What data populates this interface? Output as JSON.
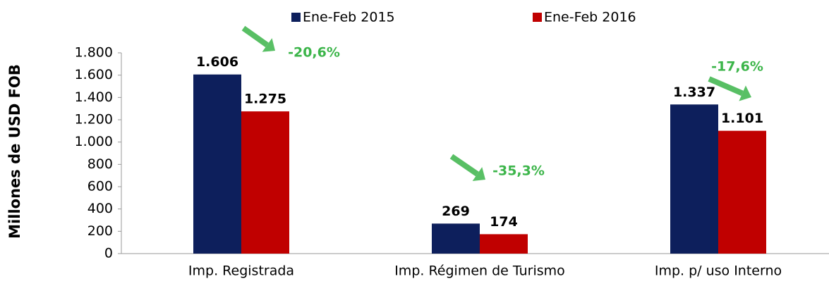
{
  "chart_data": {
    "type": "bar",
    "y_label": "Millones de USD FOB",
    "categories": [
      "Imp. Registrada",
      "Imp. Régimen de Turismo",
      "Imp. p/ uso Interno"
    ],
    "series": [
      {
        "name": "Ene-Feb 2015",
        "color": "#0d1f5c",
        "values": [
          1606,
          269,
          1337
        ],
        "value_labels": [
          "1.606",
          "269",
          "1.337"
        ]
      },
      {
        "name": "Ene-Feb 2016",
        "color": "#c00000",
        "values": [
          1275,
          174,
          1101
        ],
        "value_labels": [
          "1.275",
          "174",
          "1.101"
        ]
      }
    ],
    "annotations": [
      "-20,6%",
      "-35,3%",
      "-17,6%"
    ],
    "annotation_color": "#3cb54a",
    "ylim": [
      0,
      1800
    ],
    "yticks": [
      0,
      200,
      400,
      600,
      800,
      {
        "value": 1000,
        "label": "1.000"
      },
      {
        "value": 1200,
        "label": "1.200"
      },
      {
        "value": 1400,
        "label": "1.400"
      },
      {
        "value": 1600,
        "label": "1.600"
      },
      {
        "value": 1800,
        "label": "1.800"
      }
    ],
    "legend": "top"
  }
}
